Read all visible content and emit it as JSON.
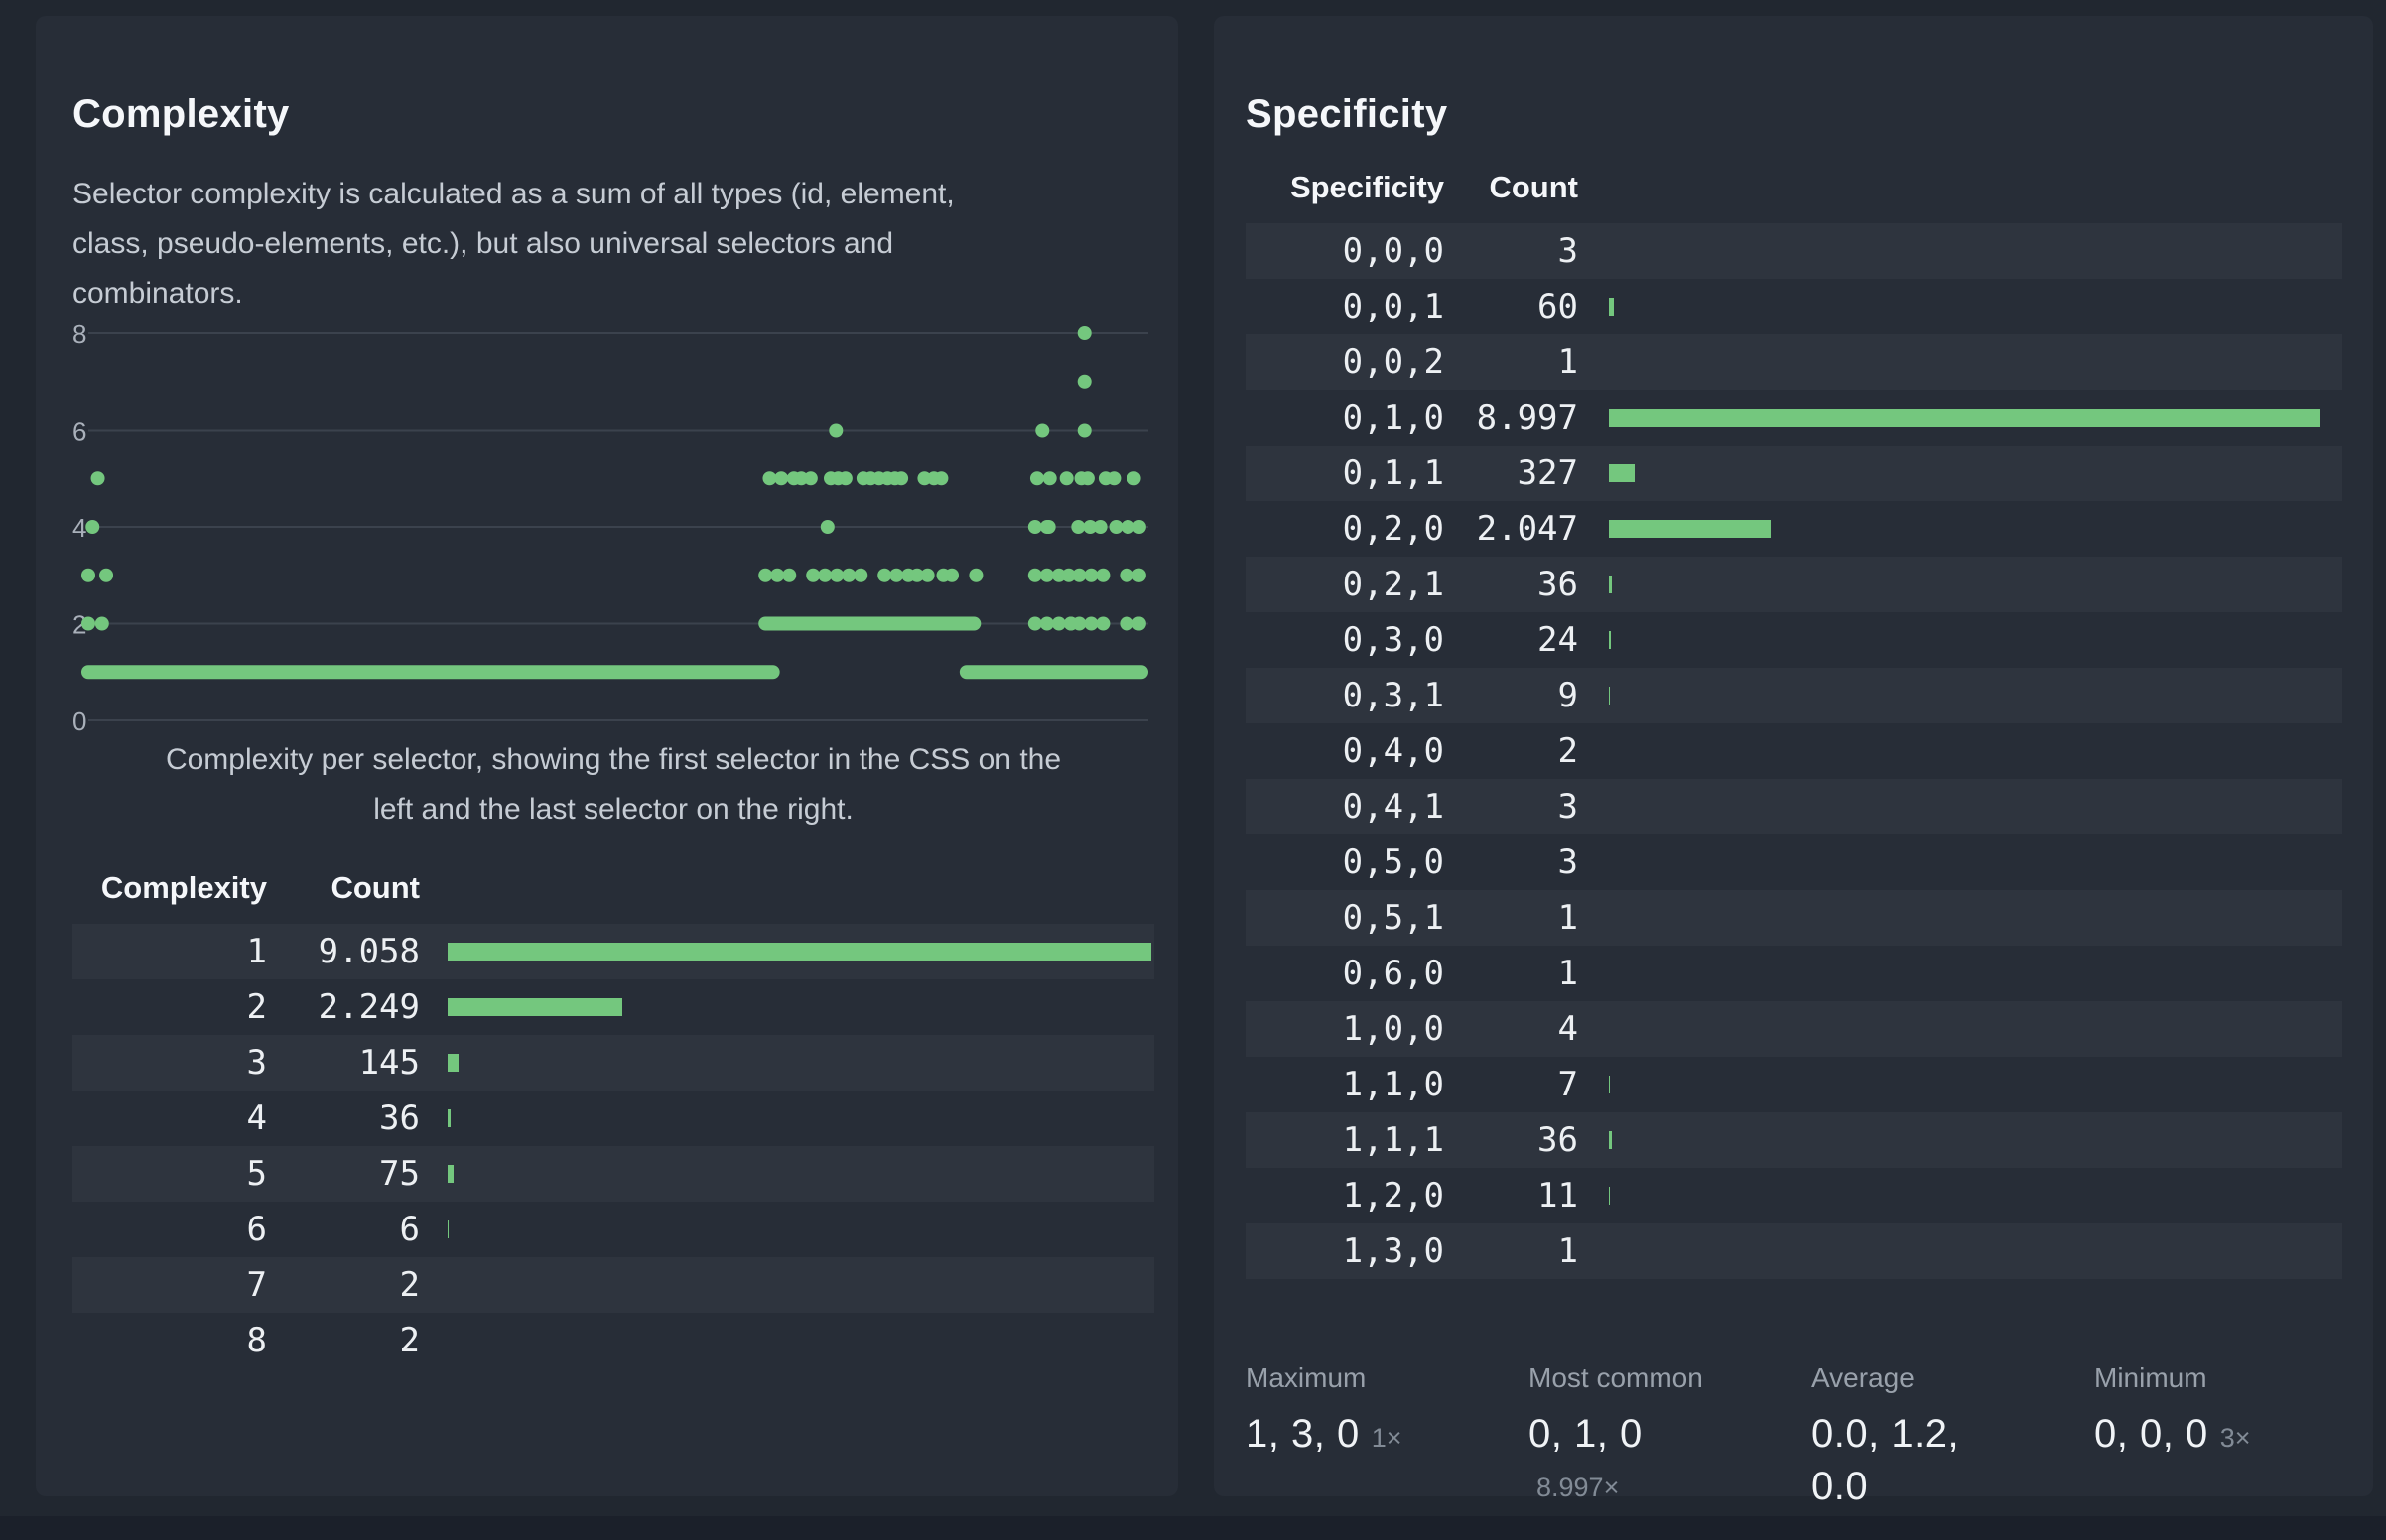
{
  "colors": {
    "accent_green": "#74c77e",
    "page_bg": "#212730",
    "panel_bg": "#272d37",
    "row_stripe": "#2e343e",
    "gridline": "#3b424d",
    "text_primary": "#f5f7fa",
    "text_secondary": "#c6ccd4",
    "text_muted": "#99a1ab"
  },
  "complexity_panel": {
    "title": "Complexity",
    "description_lines": [
      "Selector complexity is calculated as a sum of all types (id, element,",
      "class, pseudo-elements, etc.), but also universal selectors and",
      "combinators."
    ],
    "chart_caption_lines": [
      "Complexity per selector, showing the first selector in the CSS on the",
      "left and the last selector on the right."
    ],
    "table": {
      "col_headers": [
        "Complexity",
        "Count"
      ],
      "max_count": 9058,
      "rows": [
        {
          "label": "1",
          "count_display": "9.058",
          "count": 9058
        },
        {
          "label": "2",
          "count_display": "2.249",
          "count": 2249
        },
        {
          "label": "3",
          "count_display": "145",
          "count": 145
        },
        {
          "label": "4",
          "count_display": "36",
          "count": 36
        },
        {
          "label": "5",
          "count_display": "75",
          "count": 75
        },
        {
          "label": "6",
          "count_display": "6",
          "count": 6
        },
        {
          "label": "7",
          "count_display": "2",
          "count": 2
        },
        {
          "label": "8",
          "count_display": "2",
          "count": 2
        }
      ]
    }
  },
  "specificity_panel": {
    "title": "Specificity",
    "table": {
      "col_headers": [
        "Specificity",
        "Count"
      ],
      "max_count": 8997,
      "rows": [
        {
          "label": "0,0,0",
          "count_display": "3",
          "count": 3
        },
        {
          "label": "0,0,1",
          "count_display": "60",
          "count": 60
        },
        {
          "label": "0,0,2",
          "count_display": "1",
          "count": 1
        },
        {
          "label": "0,1,0",
          "count_display": "8.997",
          "count": 8997
        },
        {
          "label": "0,1,1",
          "count_display": "327",
          "count": 327
        },
        {
          "label": "0,2,0",
          "count_display": "2.047",
          "count": 2047
        },
        {
          "label": "0,2,1",
          "count_display": "36",
          "count": 36
        },
        {
          "label": "0,3,0",
          "count_display": "24",
          "count": 24
        },
        {
          "label": "0,3,1",
          "count_display": "9",
          "count": 9
        },
        {
          "label": "0,4,0",
          "count_display": "2",
          "count": 2
        },
        {
          "label": "0,4,1",
          "count_display": "3",
          "count": 3
        },
        {
          "label": "0,5,0",
          "count_display": "3",
          "count": 3
        },
        {
          "label": "0,5,1",
          "count_display": "1",
          "count": 1
        },
        {
          "label": "0,6,0",
          "count_display": "1",
          "count": 1
        },
        {
          "label": "1,0,0",
          "count_display": "4",
          "count": 4
        },
        {
          "label": "1,1,0",
          "count_display": "7",
          "count": 7
        },
        {
          "label": "1,1,1",
          "count_display": "36",
          "count": 36
        },
        {
          "label": "1,2,0",
          "count_display": "11",
          "count": 11
        },
        {
          "label": "1,3,0",
          "count_display": "1",
          "count": 1
        }
      ]
    },
    "stats": [
      {
        "label": "Maximum",
        "value_line1": "1, 3, 0",
        "value_line2": "",
        "suffix_inline": "1×",
        "suffix_below": ""
      },
      {
        "label": "Most common",
        "value_line1": "0, 1, 0",
        "value_line2": "",
        "suffix_inline": "",
        "suffix_below": "8.997×"
      },
      {
        "label": "Average",
        "value_line1": "0.0, 1.2,",
        "value_line2": "0.0",
        "suffix_inline": "",
        "suffix_below": ""
      },
      {
        "label": "Minimum",
        "value_line1": "0, 0, 0",
        "value_line2": "",
        "suffix_inline": "3×",
        "suffix_below": ""
      }
    ]
  },
  "chart_data": {
    "type": "scatter",
    "title": "Complexity per selector",
    "xlabel": "Selector position in source order (first selector left, last selector right)",
    "ylabel": "Complexity",
    "ylim": [
      0,
      8
    ],
    "yticks": [
      0,
      2,
      4,
      6,
      8
    ],
    "x_domain": [
      0,
      1
    ],
    "grid": "horizontal",
    "legend": "none",
    "runs": [
      {
        "y": 1,
        "x0": 0.0,
        "x1": 0.65,
        "style": "solid"
      },
      {
        "y": 1,
        "x0": 0.834,
        "x1": 1.0,
        "style": "solid"
      },
      {
        "y": 2,
        "x0": 0.643,
        "x1": 0.841,
        "style": "solid"
      },
      {
        "y": 2,
        "x0": 0.899,
        "x1": 0.933,
        "style": "beads"
      },
      {
        "y": 2,
        "x0": 0.941,
        "x1": 0.998,
        "style": "beads"
      },
      {
        "y": 3,
        "x0": 0.643,
        "x1": 0.787,
        "style": "beads"
      },
      {
        "y": 3,
        "x0": 0.899,
        "x1": 0.931,
        "style": "beads"
      },
      {
        "y": 3,
        "x0": 0.941,
        "x1": 0.998,
        "style": "beads"
      },
      {
        "y": 4,
        "x0": 0.899,
        "x1": 0.912,
        "style": "beads"
      },
      {
        "y": 4,
        "x0": 0.94,
        "x1": 0.961,
        "style": "beads"
      },
      {
        "y": 4,
        "x0": 0.976,
        "x1": 0.998,
        "style": "beads"
      }
    ],
    "points": [
      {
        "y": 2,
        "x": 0.0
      },
      {
        "y": 2,
        "x": 0.013
      },
      {
        "y": 3,
        "x": 0.0
      },
      {
        "y": 3,
        "x": 0.017
      },
      {
        "y": 3,
        "x": 0.797
      },
      {
        "y": 3,
        "x": 0.812
      },
      {
        "y": 3,
        "x": 0.82
      },
      {
        "y": 3,
        "x": 0.843
      },
      {
        "y": 4,
        "x": 0.004
      },
      {
        "y": 4,
        "x": 0.702
      },
      {
        "y": 5,
        "x": 0.009
      },
      {
        "y": 5,
        "x": 0.647
      },
      {
        "y": 5,
        "x": 0.658
      },
      {
        "y": 5,
        "x": 0.67
      },
      {
        "y": 5,
        "x": 0.677
      },
      {
        "y": 5,
        "x": 0.686
      },
      {
        "y": 5,
        "x": 0.705
      },
      {
        "y": 5,
        "x": 0.712
      },
      {
        "y": 5,
        "x": 0.719
      },
      {
        "y": 5,
        "x": 0.736
      },
      {
        "y": 5,
        "x": 0.743
      },
      {
        "y": 5,
        "x": 0.751
      },
      {
        "y": 5,
        "x": 0.759
      },
      {
        "y": 5,
        "x": 0.766
      },
      {
        "y": 5,
        "x": 0.772
      },
      {
        "y": 5,
        "x": 0.794
      },
      {
        "y": 5,
        "x": 0.803
      },
      {
        "y": 5,
        "x": 0.81
      },
      {
        "y": 5,
        "x": 0.901
      },
      {
        "y": 5,
        "x": 0.913
      },
      {
        "y": 5,
        "x": 0.929
      },
      {
        "y": 5,
        "x": 0.943
      },
      {
        "y": 5,
        "x": 0.949
      },
      {
        "y": 5,
        "x": 0.966
      },
      {
        "y": 5,
        "x": 0.974
      },
      {
        "y": 5,
        "x": 0.993
      },
      {
        "y": 6,
        "x": 0.71
      },
      {
        "y": 6,
        "x": 0.906
      },
      {
        "y": 6,
        "x": 0.946
      },
      {
        "y": 7,
        "x": 0.946
      },
      {
        "y": 8,
        "x": 0.946
      }
    ]
  }
}
